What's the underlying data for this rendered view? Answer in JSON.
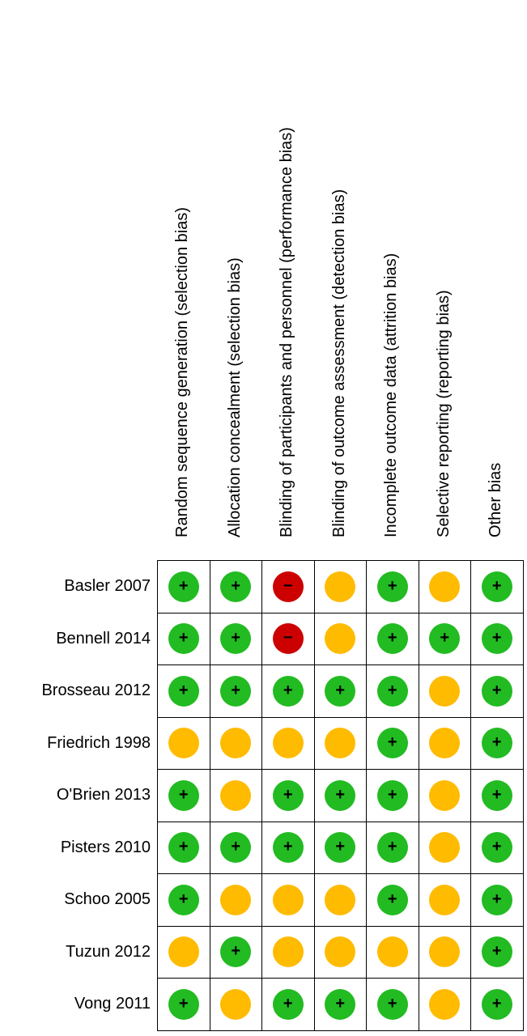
{
  "columns": [
    "Random sequence generation (selection bias)",
    "Allocation concealment (selection bias)",
    "Blinding of participants and personnel (performance bias)",
    "Blinding of outcome assessment (detection bias)",
    "Incomplete outcome data (attrition bias)",
    "Selective reporting (reporting bias)",
    "Other bias"
  ],
  "rows": [
    {
      "study": "Basler 2007",
      "ratings": [
        "low",
        "low",
        "high",
        "unclear",
        "low",
        "unclear",
        "low"
      ]
    },
    {
      "study": "Bennell 2014",
      "ratings": [
        "low",
        "low",
        "high",
        "unclear",
        "low",
        "low",
        "low"
      ]
    },
    {
      "study": "Brosseau 2012",
      "ratings": [
        "low",
        "low",
        "low",
        "low",
        "low",
        "unclear",
        "low"
      ]
    },
    {
      "study": "Friedrich 1998",
      "ratings": [
        "unclear",
        "unclear",
        "unclear",
        "unclear",
        "low",
        "unclear",
        "low"
      ]
    },
    {
      "study": "O'Brien 2013",
      "ratings": [
        "low",
        "unclear",
        "low",
        "low",
        "low",
        "unclear",
        "low"
      ]
    },
    {
      "study": "Pisters 2010",
      "ratings": [
        "low",
        "low",
        "low",
        "low",
        "low",
        "unclear",
        "low"
      ]
    },
    {
      "study": "Schoo 2005",
      "ratings": [
        "low",
        "unclear",
        "unclear",
        "unclear",
        "low",
        "unclear",
        "low"
      ]
    },
    {
      "study": "Tuzun 2012",
      "ratings": [
        "unclear",
        "low",
        "unclear",
        "unclear",
        "unclear",
        "unclear",
        "low"
      ]
    },
    {
      "study": "Vong 2011",
      "ratings": [
        "low",
        "unclear",
        "low",
        "low",
        "low",
        "unclear",
        "low"
      ]
    }
  ],
  "symbols": {
    "low": "+",
    "high": "−",
    "unclear": ""
  },
  "colors": {
    "low": "#22bb22",
    "unclear": "#ffbb00",
    "high": "#cc0000",
    "grid": "#000000"
  }
}
